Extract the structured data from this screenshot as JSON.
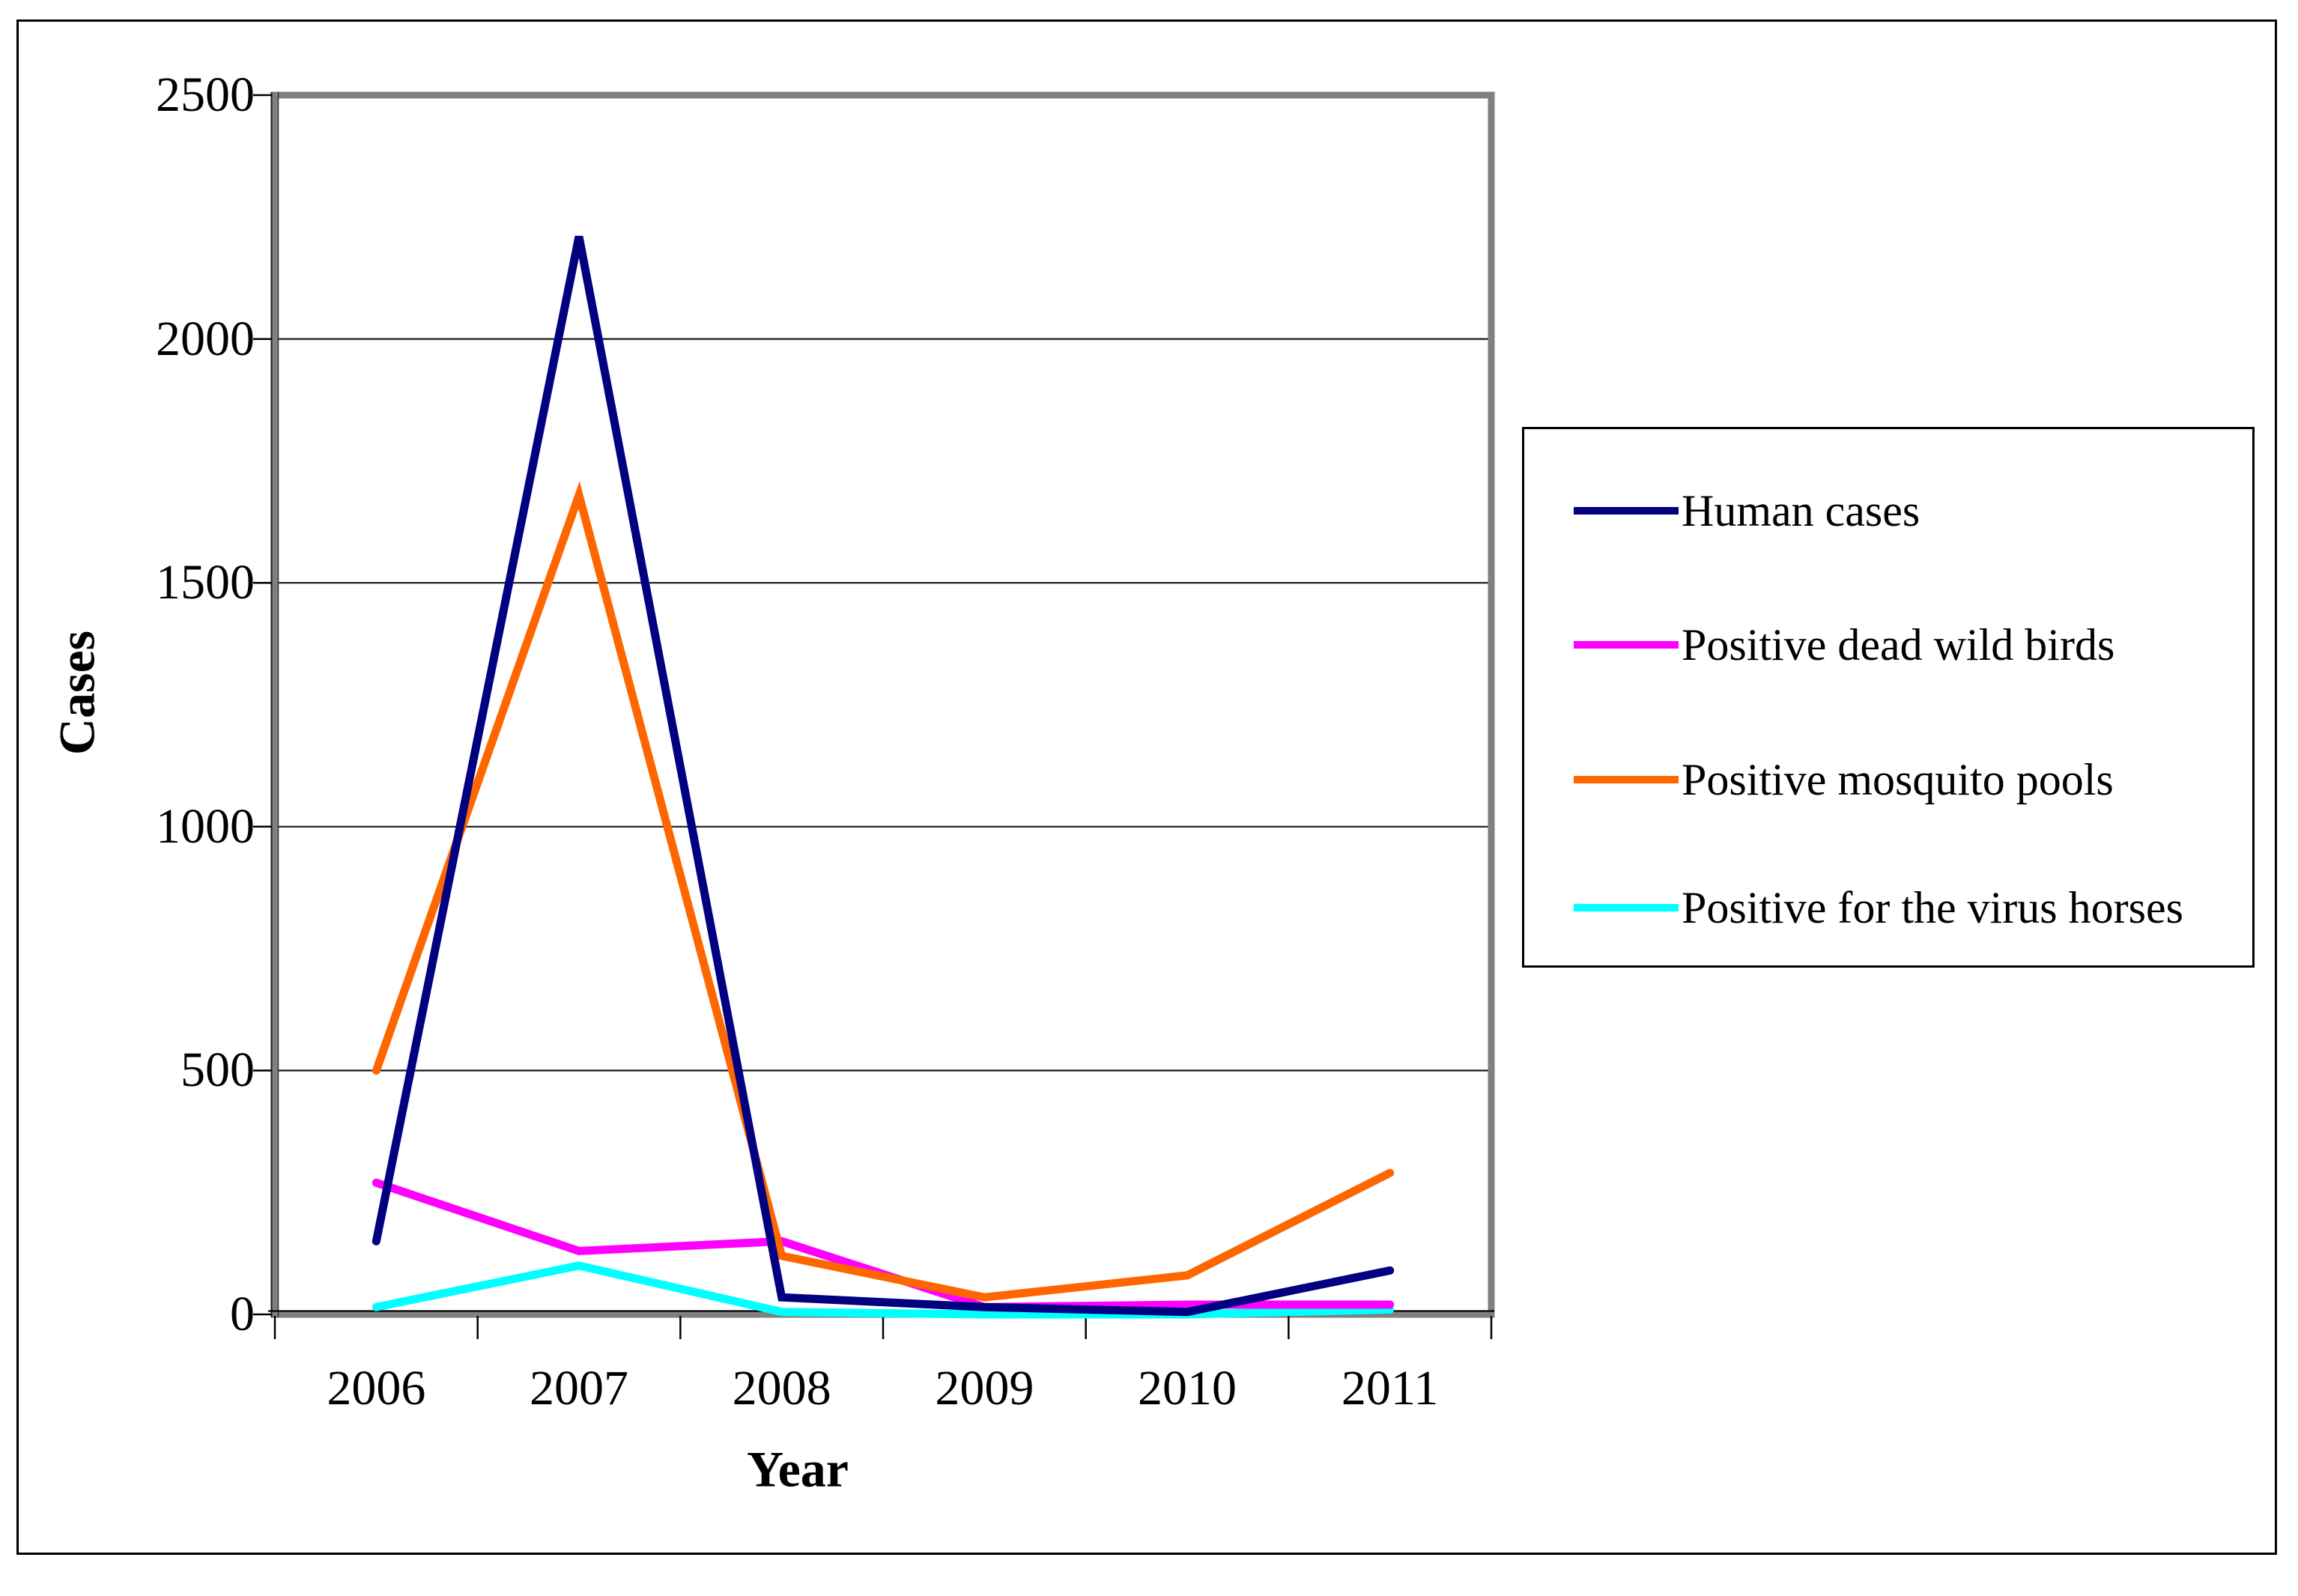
{
  "figure": {
    "background": "#ffffff",
    "outer_border_color": "#000000",
    "plot_frame_color": "#808080",
    "gridline_color": "#1a1a1a",
    "tick_color": "#000000"
  },
  "chart_data": {
    "type": "line",
    "title": "",
    "xlabel": "Year",
    "ylabel": "Cases",
    "categories": [
      "2006",
      "2007",
      "2008",
      "2009",
      "2010",
      "2011"
    ],
    "series": [
      {
        "name": "Human cases",
        "color": "#000080",
        "values": [
          150,
          2210,
          35,
          15,
          5,
          90
        ]
      },
      {
        "name": "Positive dead wild birds",
        "color": "#FF00FF",
        "values": [
          270,
          130,
          150,
          15,
          20,
          20
        ]
      },
      {
        "name": "Positive mosquito pools",
        "color": "#FF6600",
        "values": [
          500,
          1680,
          120,
          35,
          80,
          290
        ]
      },
      {
        "name": "Positive for the virus horses",
        "color": "#00FFFF",
        "values": [
          15,
          100,
          5,
          0,
          0,
          10
        ]
      }
    ],
    "ylim": [
      0,
      2500
    ],
    "yticks": [
      "0",
      "500",
      "1000",
      "1500",
      "2000",
      "2500"
    ],
    "ytick_values": [
      0,
      500,
      1000,
      1500,
      2000,
      2500
    ],
    "grid": true,
    "legend_position": "right"
  }
}
